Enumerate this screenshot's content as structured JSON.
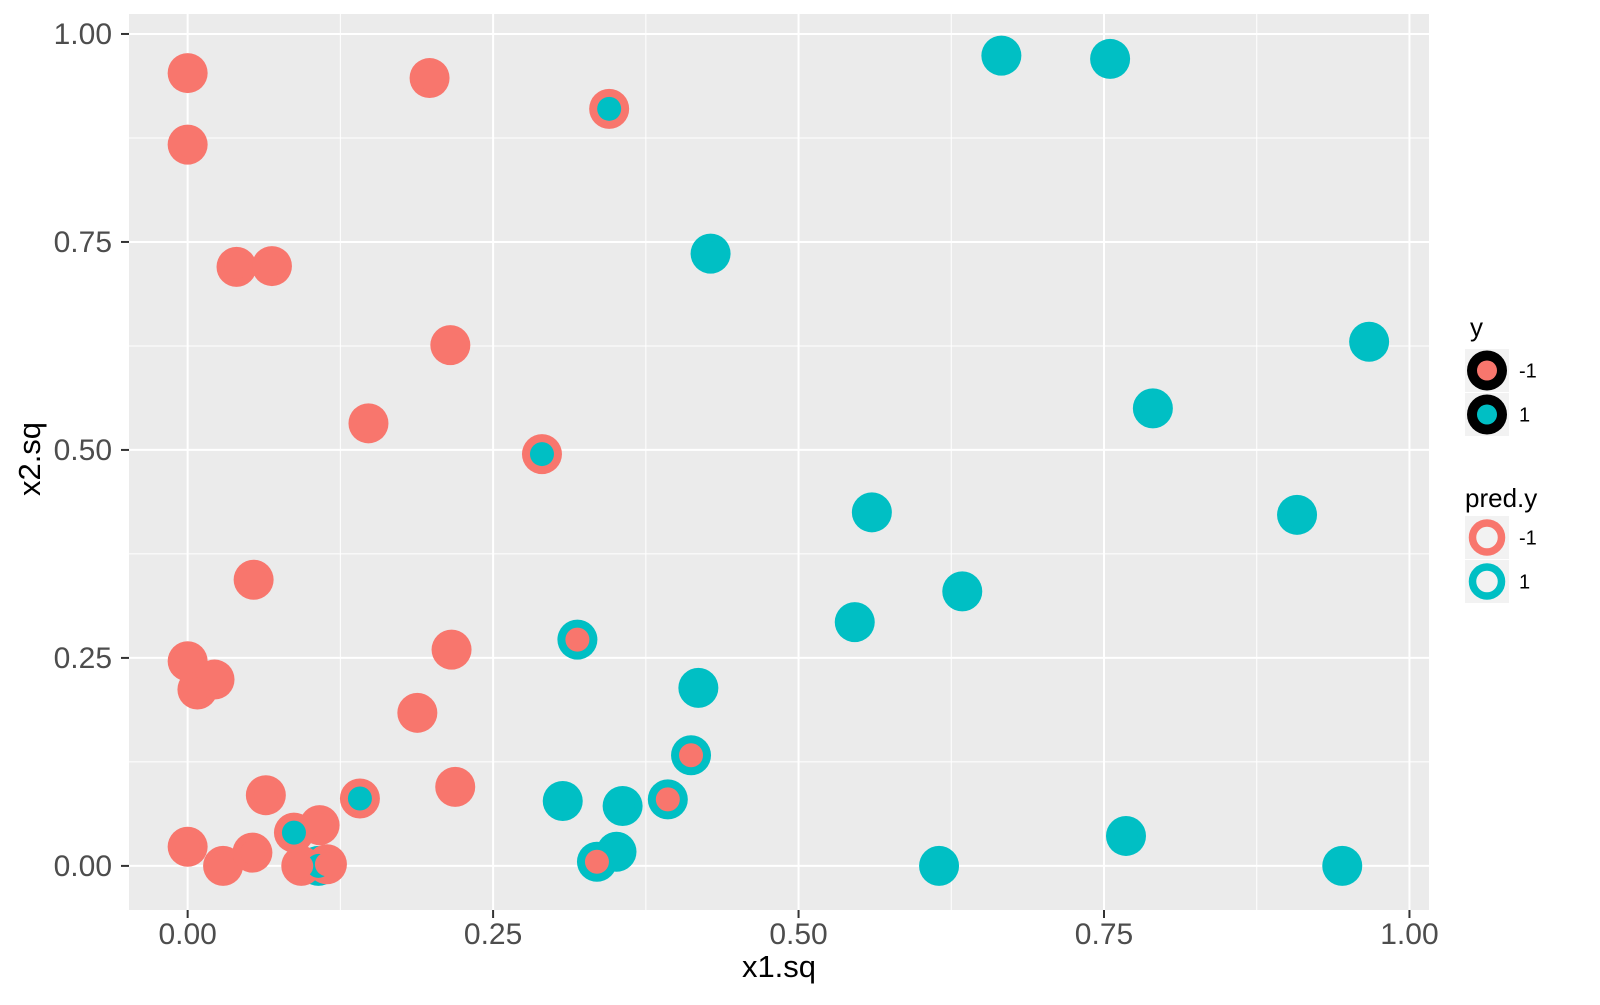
{
  "chart_data": {
    "type": "scatter",
    "title": "",
    "xlabel": "x1.sq",
    "ylabel": "x2.sq",
    "x_ticks": [
      0.0,
      0.25,
      0.5,
      0.75,
      1.0
    ],
    "y_ticks": [
      0.0,
      0.25,
      0.5,
      0.75,
      1.0
    ],
    "x_tick_labels": [
      "0.00",
      "0.25",
      "0.50",
      "0.75",
      "1.00"
    ],
    "y_tick_labels": [
      "0.00",
      "0.25",
      "0.50",
      "0.75",
      "1.00"
    ],
    "xlim": [
      -0.048,
      1.016
    ],
    "ylim": [
      -0.053,
      1.024
    ],
    "grid": true,
    "panel_bg": "#EBEBEB",
    "grid_color": "#FFFFFF",
    "tick_color": "#333333",
    "tick_label_color": "#4D4D4D",
    "class_colors": {
      "-1": "#F8766D",
      "1": "#00BFC4"
    },
    "point_outer_radius": 20,
    "point_inner_radius": 12,
    "series": [
      {
        "name": "y=1, pred.y=1",
        "y": "1",
        "pred": "1",
        "points": [
          [
            0.107,
            0.0
          ],
          [
            0.666,
            0.974
          ],
          [
            0.755,
            0.97
          ],
          [
            0.428,
            0.736
          ],
          [
            0.967,
            0.63
          ],
          [
            0.79,
            0.55
          ],
          [
            0.908,
            0.422
          ],
          [
            0.56,
            0.425
          ],
          [
            0.634,
            0.33
          ],
          [
            0.546,
            0.293
          ],
          [
            0.418,
            0.214
          ],
          [
            0.307,
            0.078
          ],
          [
            0.356,
            0.072
          ],
          [
            0.351,
            0.017
          ],
          [
            0.615,
            0.0
          ],
          [
            0.768,
            0.036
          ],
          [
            0.945,
            0.0
          ]
        ]
      },
      {
        "name": "y=-1, pred.y=-1",
        "y": "-1",
        "pred": "-1",
        "points": [
          [
            0.0,
            0.953
          ],
          [
            0.0,
            0.867
          ],
          [
            0.198,
            0.947
          ],
          [
            0.04,
            0.72
          ],
          [
            0.069,
            0.721
          ],
          [
            0.215,
            0.626
          ],
          [
            0.148,
            0.532
          ],
          [
            0.054,
            0.344
          ],
          [
            0.216,
            0.26
          ],
          [
            0.188,
            0.184
          ],
          [
            0.0,
            0.246
          ],
          [
            0.008,
            0.212
          ],
          [
            0.022,
            0.224
          ],
          [
            0.219,
            0.095
          ],
          [
            0.064,
            0.085
          ],
          [
            0.0,
            0.023
          ],
          [
            0.029,
            0.0
          ],
          [
            0.053,
            0.016
          ],
          [
            0.108,
            0.049
          ],
          [
            0.093,
            0.0
          ],
          [
            0.114,
            0.002
          ]
        ]
      },
      {
        "name": "y=1, pred.y=-1",
        "y": "1",
        "pred": "-1",
        "points": [
          [
            0.345,
            0.91
          ],
          [
            0.29,
            0.495
          ],
          [
            0.141,
            0.081
          ],
          [
            0.087,
            0.04
          ]
        ]
      },
      {
        "name": "y=-1, pred.y=1",
        "y": "-1",
        "pred": "1",
        "points": [
          [
            0.319,
            0.272
          ],
          [
            0.412,
            0.133
          ],
          [
            0.393,
            0.08
          ],
          [
            0.335,
            0.005
          ]
        ]
      }
    ],
    "legends": [
      {
        "title": "y",
        "glyph": "filled-ring",
        "items": [
          {
            "label": "-1",
            "color": "#F8766D"
          },
          {
            "label": "1",
            "color": "#00BFC4"
          }
        ]
      },
      {
        "title": "pred.y",
        "glyph": "open-ring",
        "items": [
          {
            "label": "-1",
            "color": "#F8766D"
          },
          {
            "label": "1",
            "color": "#00BFC4"
          }
        ]
      }
    ],
    "legend_key_bg": "#F2F2F2"
  }
}
